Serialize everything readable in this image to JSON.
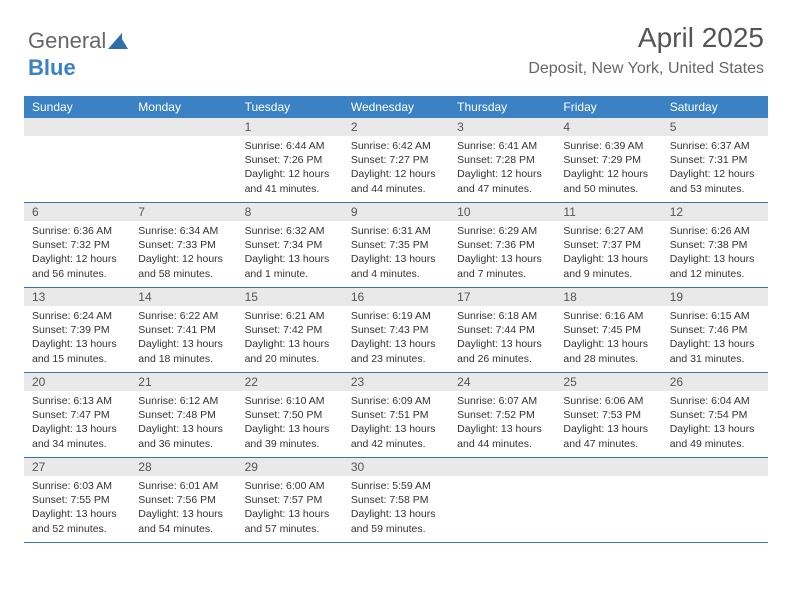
{
  "logo": {
    "part1": "General",
    "part2": "Blue"
  },
  "title": "April 2025",
  "location": "Deposit, New York, United States",
  "colors": {
    "header_bg": "#3b82c4",
    "header_text": "#ffffff",
    "daynum_bg": "#e9e9e9",
    "week_border": "#3b72a8",
    "body_text": "#333333",
    "title_text": "#555555"
  },
  "weekdays": [
    "Sunday",
    "Monday",
    "Tuesday",
    "Wednesday",
    "Thursday",
    "Friday",
    "Saturday"
  ],
  "weeks": [
    [
      null,
      null,
      {
        "n": "1",
        "sunrise": "Sunrise: 6:44 AM",
        "sunset": "Sunset: 7:26 PM",
        "daylight": "Daylight: 12 hours and 41 minutes."
      },
      {
        "n": "2",
        "sunrise": "Sunrise: 6:42 AM",
        "sunset": "Sunset: 7:27 PM",
        "daylight": "Daylight: 12 hours and 44 minutes."
      },
      {
        "n": "3",
        "sunrise": "Sunrise: 6:41 AM",
        "sunset": "Sunset: 7:28 PM",
        "daylight": "Daylight: 12 hours and 47 minutes."
      },
      {
        "n": "4",
        "sunrise": "Sunrise: 6:39 AM",
        "sunset": "Sunset: 7:29 PM",
        "daylight": "Daylight: 12 hours and 50 minutes."
      },
      {
        "n": "5",
        "sunrise": "Sunrise: 6:37 AM",
        "sunset": "Sunset: 7:31 PM",
        "daylight": "Daylight: 12 hours and 53 minutes."
      }
    ],
    [
      {
        "n": "6",
        "sunrise": "Sunrise: 6:36 AM",
        "sunset": "Sunset: 7:32 PM",
        "daylight": "Daylight: 12 hours and 56 minutes."
      },
      {
        "n": "7",
        "sunrise": "Sunrise: 6:34 AM",
        "sunset": "Sunset: 7:33 PM",
        "daylight": "Daylight: 12 hours and 58 minutes."
      },
      {
        "n": "8",
        "sunrise": "Sunrise: 6:32 AM",
        "sunset": "Sunset: 7:34 PM",
        "daylight": "Daylight: 13 hours and 1 minute."
      },
      {
        "n": "9",
        "sunrise": "Sunrise: 6:31 AM",
        "sunset": "Sunset: 7:35 PM",
        "daylight": "Daylight: 13 hours and 4 minutes."
      },
      {
        "n": "10",
        "sunrise": "Sunrise: 6:29 AM",
        "sunset": "Sunset: 7:36 PM",
        "daylight": "Daylight: 13 hours and 7 minutes."
      },
      {
        "n": "11",
        "sunrise": "Sunrise: 6:27 AM",
        "sunset": "Sunset: 7:37 PM",
        "daylight": "Daylight: 13 hours and 9 minutes."
      },
      {
        "n": "12",
        "sunrise": "Sunrise: 6:26 AM",
        "sunset": "Sunset: 7:38 PM",
        "daylight": "Daylight: 13 hours and 12 minutes."
      }
    ],
    [
      {
        "n": "13",
        "sunrise": "Sunrise: 6:24 AM",
        "sunset": "Sunset: 7:39 PM",
        "daylight": "Daylight: 13 hours and 15 minutes."
      },
      {
        "n": "14",
        "sunrise": "Sunrise: 6:22 AM",
        "sunset": "Sunset: 7:41 PM",
        "daylight": "Daylight: 13 hours and 18 minutes."
      },
      {
        "n": "15",
        "sunrise": "Sunrise: 6:21 AM",
        "sunset": "Sunset: 7:42 PM",
        "daylight": "Daylight: 13 hours and 20 minutes."
      },
      {
        "n": "16",
        "sunrise": "Sunrise: 6:19 AM",
        "sunset": "Sunset: 7:43 PM",
        "daylight": "Daylight: 13 hours and 23 minutes."
      },
      {
        "n": "17",
        "sunrise": "Sunrise: 6:18 AM",
        "sunset": "Sunset: 7:44 PM",
        "daylight": "Daylight: 13 hours and 26 minutes."
      },
      {
        "n": "18",
        "sunrise": "Sunrise: 6:16 AM",
        "sunset": "Sunset: 7:45 PM",
        "daylight": "Daylight: 13 hours and 28 minutes."
      },
      {
        "n": "19",
        "sunrise": "Sunrise: 6:15 AM",
        "sunset": "Sunset: 7:46 PM",
        "daylight": "Daylight: 13 hours and 31 minutes."
      }
    ],
    [
      {
        "n": "20",
        "sunrise": "Sunrise: 6:13 AM",
        "sunset": "Sunset: 7:47 PM",
        "daylight": "Daylight: 13 hours and 34 minutes."
      },
      {
        "n": "21",
        "sunrise": "Sunrise: 6:12 AM",
        "sunset": "Sunset: 7:48 PM",
        "daylight": "Daylight: 13 hours and 36 minutes."
      },
      {
        "n": "22",
        "sunrise": "Sunrise: 6:10 AM",
        "sunset": "Sunset: 7:50 PM",
        "daylight": "Daylight: 13 hours and 39 minutes."
      },
      {
        "n": "23",
        "sunrise": "Sunrise: 6:09 AM",
        "sunset": "Sunset: 7:51 PM",
        "daylight": "Daylight: 13 hours and 42 minutes."
      },
      {
        "n": "24",
        "sunrise": "Sunrise: 6:07 AM",
        "sunset": "Sunset: 7:52 PM",
        "daylight": "Daylight: 13 hours and 44 minutes."
      },
      {
        "n": "25",
        "sunrise": "Sunrise: 6:06 AM",
        "sunset": "Sunset: 7:53 PM",
        "daylight": "Daylight: 13 hours and 47 minutes."
      },
      {
        "n": "26",
        "sunrise": "Sunrise: 6:04 AM",
        "sunset": "Sunset: 7:54 PM",
        "daylight": "Daylight: 13 hours and 49 minutes."
      }
    ],
    [
      {
        "n": "27",
        "sunrise": "Sunrise: 6:03 AM",
        "sunset": "Sunset: 7:55 PM",
        "daylight": "Daylight: 13 hours and 52 minutes."
      },
      {
        "n": "28",
        "sunrise": "Sunrise: 6:01 AM",
        "sunset": "Sunset: 7:56 PM",
        "daylight": "Daylight: 13 hours and 54 minutes."
      },
      {
        "n": "29",
        "sunrise": "Sunrise: 6:00 AM",
        "sunset": "Sunset: 7:57 PM",
        "daylight": "Daylight: 13 hours and 57 minutes."
      },
      {
        "n": "30",
        "sunrise": "Sunrise: 5:59 AM",
        "sunset": "Sunset: 7:58 PM",
        "daylight": "Daylight: 13 hours and 59 minutes."
      },
      null,
      null,
      null
    ]
  ]
}
